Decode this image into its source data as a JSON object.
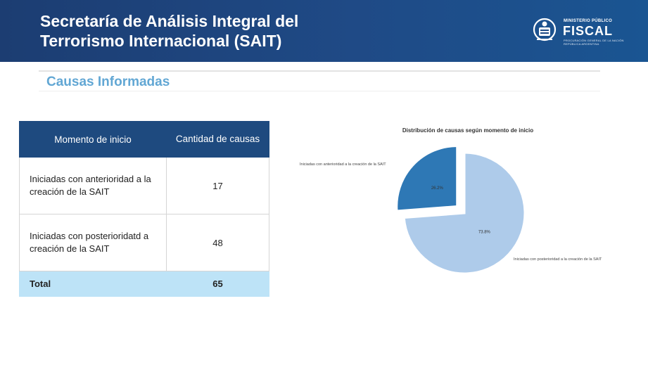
{
  "header": {
    "title_line1": "Secretaría de Análisis Integral del",
    "title_line2": "Terrorismo Internacional (SAIT)",
    "logo": {
      "small": "MINISTERIO PÚBLICO",
      "big": "FISCAL",
      "sub1": "PROCURACIÓN GENERAL DE LA NACIÓN",
      "sub2": "REPÚBLICA ARGENTINA"
    }
  },
  "section": {
    "title": "Causas Informadas"
  },
  "table": {
    "headers": [
      "Momento de inicio",
      "Cantidad de causas"
    ],
    "rows": [
      {
        "label": "Iniciadas con anterioridad a la creación de la SAIT",
        "value": "17"
      },
      {
        "label": "Iniciadas con posterioridatd a creación de la SAIT",
        "value": "48"
      }
    ],
    "total": {
      "label": "Total",
      "value": "65"
    }
  },
  "chart_data": {
    "type": "pie",
    "title": "Distribución de causas según momento de inicio",
    "slices": [
      {
        "label": "Iniciadas con anterioridad a la creación de la SAIT",
        "value": 26.2,
        "display": "26.2%",
        "color": "#2e78b5",
        "exploded": true
      },
      {
        "label": "Iniciadas con posterioridad a la creación de la SAIT",
        "value": 73.8,
        "display": "73.8%",
        "color": "#aecbea",
        "exploded": false
      }
    ]
  }
}
